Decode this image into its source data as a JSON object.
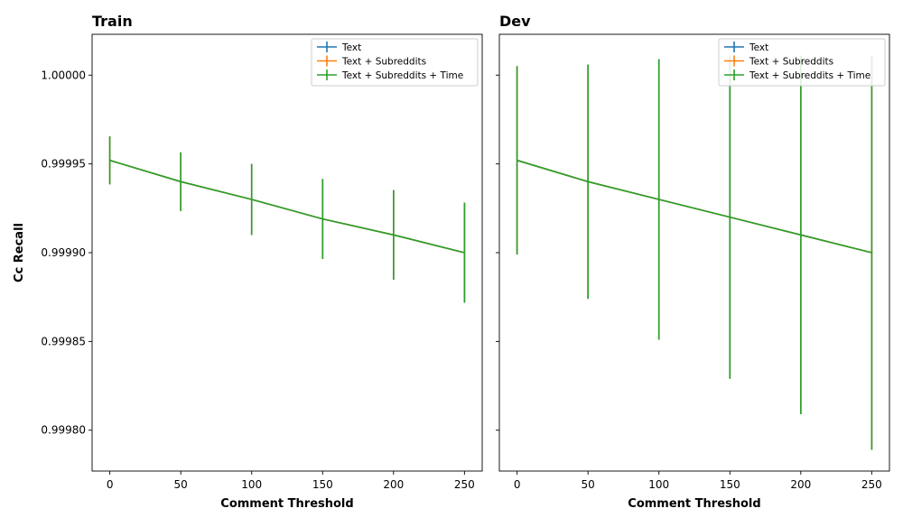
{
  "figure": {
    "ylabel": "Cc Recall"
  },
  "chart_data": [
    {
      "type": "line",
      "title": "Train",
      "xlabel": "Comment Threshold",
      "ylabel": "Cc Recall",
      "xlim": [
        -12.5,
        262.5
      ],
      "ylim": [
        0.999777,
        1.000023
      ],
      "xticks": [
        0,
        50,
        100,
        150,
        200,
        250
      ],
      "xtick_labels": [
        "0",
        "50",
        "100",
        "150",
        "200",
        "250"
      ],
      "yticks": [
        0.9998,
        0.99985,
        0.9999,
        0.99995,
        1.0
      ],
      "ytick_labels": [
        "0.99980",
        "0.99985",
        "0.99990",
        "0.99995",
        "1.00000"
      ],
      "legend_position": "top-right",
      "grid": false,
      "x": [
        0,
        50,
        100,
        150,
        200,
        250
      ],
      "series": [
        {
          "name": "Text",
          "color": "#1f77b4",
          "values": [
            0.999952,
            0.99994,
            0.99993,
            0.999919,
            0.99991,
            0.9999
          ],
          "errors": [
            1.35e-05,
            1.65e-05,
            2e-05,
            2.25e-05,
            2.52e-05,
            2.82e-05
          ]
        },
        {
          "name": "Text + Subreddits",
          "color": "#ff7f0e",
          "values": [
            0.999952,
            0.99994,
            0.99993,
            0.999919,
            0.99991,
            0.9999
          ],
          "errors": [
            1.35e-05,
            1.65e-05,
            2e-05,
            2.25e-05,
            2.52e-05,
            2.82e-05
          ]
        },
        {
          "name": "Text + Subreddits + Time",
          "color": "#2ca02c",
          "values": [
            0.999952,
            0.99994,
            0.99993,
            0.999919,
            0.99991,
            0.9999
          ],
          "errors": [
            1.35e-05,
            1.65e-05,
            2e-05,
            2.25e-05,
            2.52e-05,
            2.82e-05
          ]
        }
      ]
    },
    {
      "type": "line",
      "title": "Dev",
      "xlabel": "Comment Threshold",
      "ylabel": "",
      "xlim": [
        -12.5,
        262.5
      ],
      "ylim": [
        0.999777,
        1.000023
      ],
      "xticks": [
        0,
        50,
        100,
        150,
        200,
        250
      ],
      "xtick_labels": [
        "0",
        "50",
        "100",
        "150",
        "200",
        "250"
      ],
      "yticks": [
        0.9998,
        0.99985,
        0.9999,
        0.99995,
        1.0
      ],
      "ytick_labels": [],
      "legend_position": "top-right",
      "grid": false,
      "x": [
        0,
        50,
        100,
        150,
        200,
        250
      ],
      "series": [
        {
          "name": "Text",
          "color": "#1f77b4",
          "values": [
            0.999952,
            0.99994,
            0.99993,
            0.99992,
            0.99991,
            0.9999
          ],
          "errors": [
            5.3e-05,
            6.6e-05,
            7.9e-05,
            9.1e-05,
            0.000101,
            0.000111
          ]
        },
        {
          "name": "Text + Subreddits",
          "color": "#ff7f0e",
          "values": [
            0.999952,
            0.99994,
            0.99993,
            0.99992,
            0.99991,
            0.9999
          ],
          "errors": [
            5.3e-05,
            6.6e-05,
            7.9e-05,
            9.1e-05,
            0.000101,
            0.000111
          ]
        },
        {
          "name": "Text + Subreddits + Time",
          "color": "#2ca02c",
          "values": [
            0.999952,
            0.99994,
            0.99993,
            0.99992,
            0.99991,
            0.9999
          ],
          "errors": [
            5.3e-05,
            6.6e-05,
            7.9e-05,
            9.1e-05,
            0.000101,
            0.000111
          ]
        }
      ]
    }
  ]
}
